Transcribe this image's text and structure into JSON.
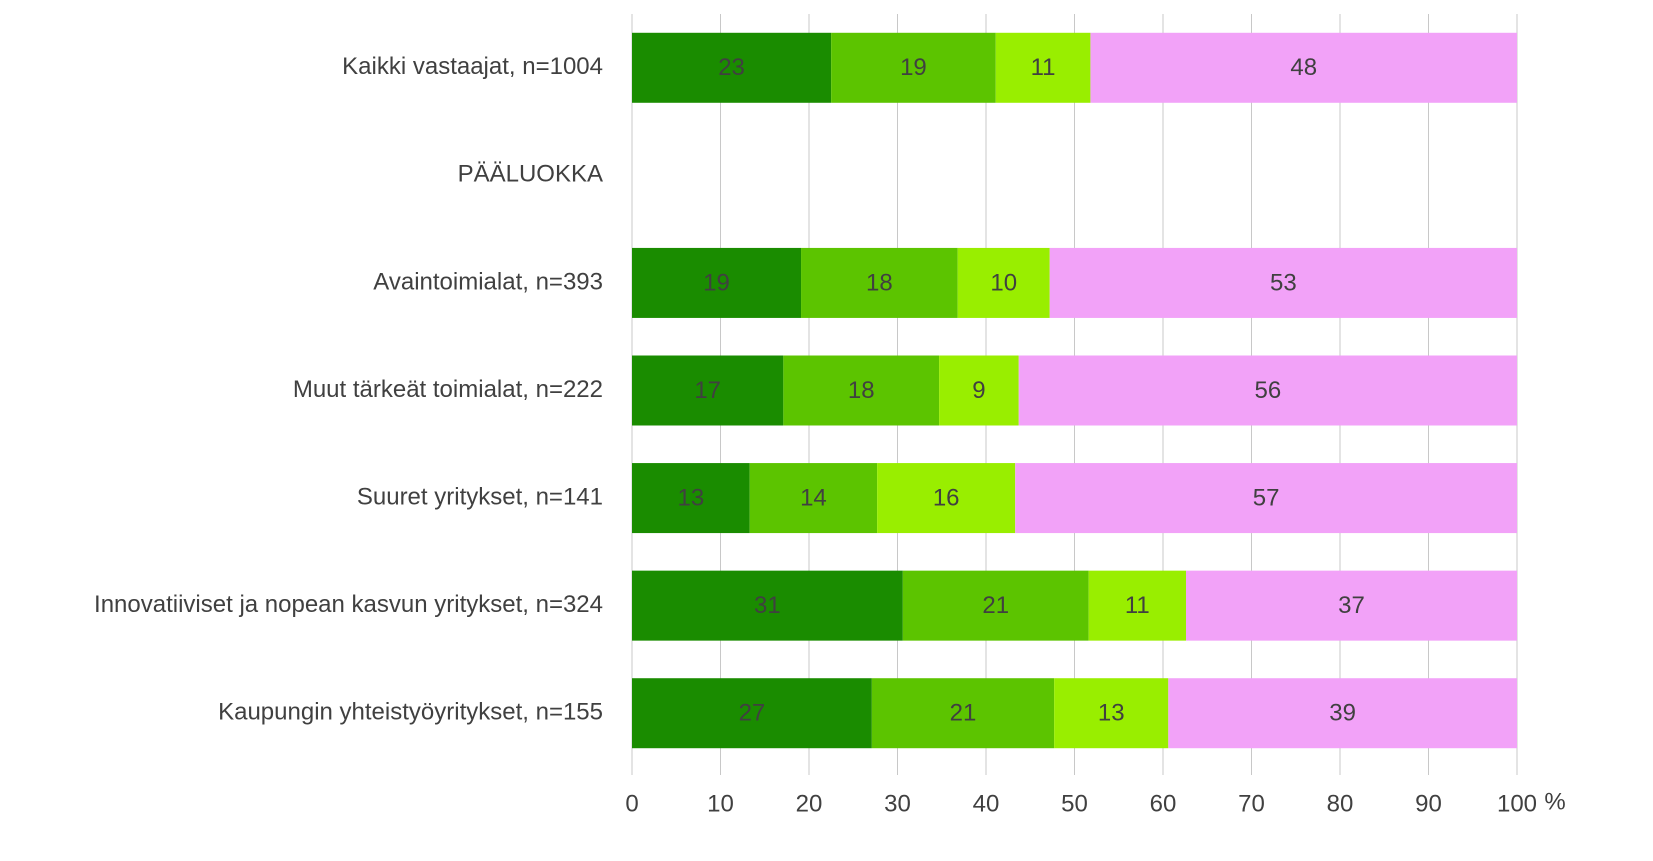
{
  "chart_data": {
    "type": "stacked-barh",
    "categories": [
      "Kaikki vastaajat, n=1004",
      "PÄÄLUOKKA",
      "Avaintoimialat, n=393",
      "Muut tärkeät toimialat, n=222",
      "Suuret yritykset, n=141",
      "Innovatiiviset ja nopean kasvun yritykset, n=324",
      "Kaupungin yhteistyöyritykset, n=155"
    ],
    "series": [
      {
        "color": "#1a8c00",
        "values": [
          22.5,
          null,
          19.1,
          17.1,
          13.3,
          30.6,
          27.1
        ],
        "value_labels": [
          "23",
          null,
          "19",
          "17",
          "13",
          "31",
          "27"
        ]
      },
      {
        "color": "#5cc400",
        "values": [
          18.6,
          null,
          17.7,
          17.6,
          14.4,
          21.0,
          20.6
        ],
        "value_labels": [
          "19",
          null,
          "18",
          "18",
          "14",
          "21",
          "21"
        ]
      },
      {
        "color": "#99ee00",
        "values": [
          10.7,
          null,
          10.4,
          9.0,
          15.6,
          11.0,
          12.9
        ],
        "value_labels": [
          "11",
          null,
          "10",
          "9",
          "16",
          "11",
          "13"
        ]
      },
      {
        "color": "#f2a2f8",
        "values": [
          48.2,
          null,
          52.8,
          56.3,
          56.7,
          37.4,
          39.4
        ],
        "value_labels": [
          "48",
          null,
          "53",
          "56",
          "57",
          "37",
          "39"
        ]
      }
    ],
    "xlabel": "%",
    "xlim": [
      0,
      100
    ],
    "xticks": [
      0,
      10,
      20,
      30,
      40,
      50,
      60,
      70,
      80,
      90,
      100
    ],
    "grid": true
  }
}
